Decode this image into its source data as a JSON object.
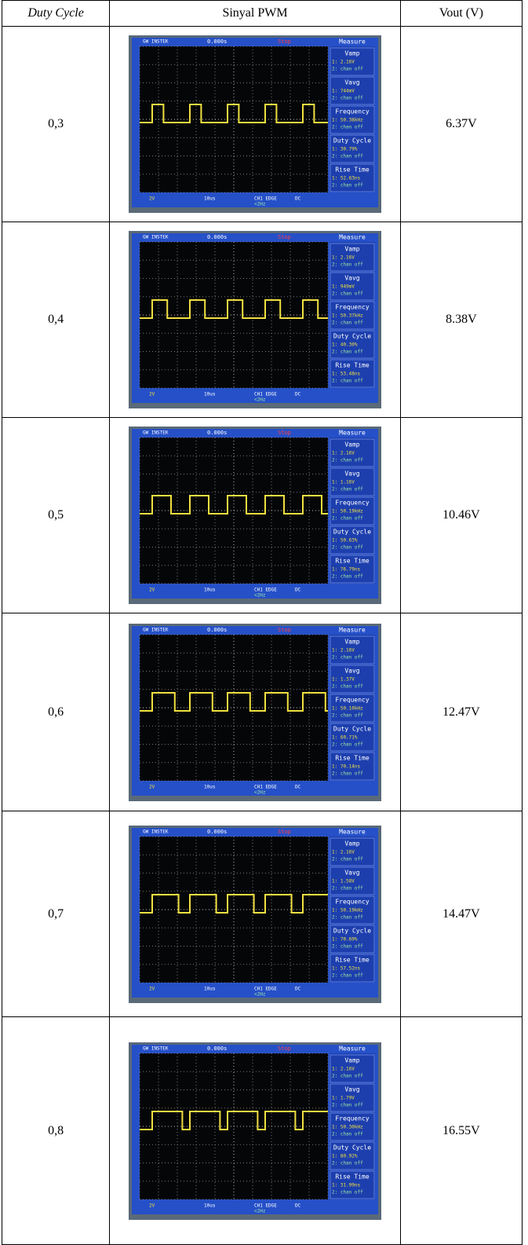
{
  "table": {
    "headers": [
      "Duty Cycle",
      "Sinyal PWM",
      "Vout (V)"
    ],
    "rows": [
      {
        "duty_cycle": "0,3",
        "vout": "6.37V",
        "readings": [
          "1: 2.16V",
          "1: 744mV",
          "1: 50.38kHz",
          "1: 30.79%",
          "1: 52.63ns"
        ]
      },
      {
        "duty_cycle": "0,4",
        "vout": "8.38V",
        "readings": [
          "1: 2.16V",
          "1: 949mV",
          "1: 50.37kHz",
          "1: 40.30%",
          "1: 53.48ns"
        ]
      },
      {
        "duty_cycle": "0,5",
        "vout": "10.46V",
        "readings": [
          "1: 2.16V",
          "1: 1.16V",
          "1: 50.19kHz",
          "1: 50.63%",
          "1: 76.79ns"
        ]
      },
      {
        "duty_cycle": "0,6",
        "vout": "12.47V",
        "readings": [
          "1: 2.16V",
          "1: 1.37V",
          "1: 50.10kHz",
          "1: 60.71%",
          "1: 70.14ns"
        ]
      },
      {
        "duty_cycle": "0,7",
        "vout": "14.47V",
        "readings": [
          "1: 2.16V",
          "1: 1.58V",
          "1: 50.19kHz",
          "1: 70.69%",
          "1: 57.52ns"
        ]
      },
      {
        "duty_cycle": "0,8",
        "vout": "16.55V",
        "readings": [
          "1: 2.16V",
          "1: 1.79V",
          "1: 50.30kHz",
          "1: 80.92%",
          "1: 31.99ns"
        ]
      }
    ]
  },
  "scope": {
    "brand": "GW INSTEK",
    "trigger_time": "0.000s",
    "status": "Stop",
    "menu": "Measure",
    "measurements": [
      "Vamp",
      "Vavg",
      "Frequency",
      "Duty Cycle",
      "Rise Time"
    ],
    "channel_off": "2: chan off",
    "ch1_scale": "2V",
    "timebase": "10us",
    "trigger": "CH1 EDGE",
    "coupling": "DC",
    "trigger_freq": "<2Hz"
  }
}
